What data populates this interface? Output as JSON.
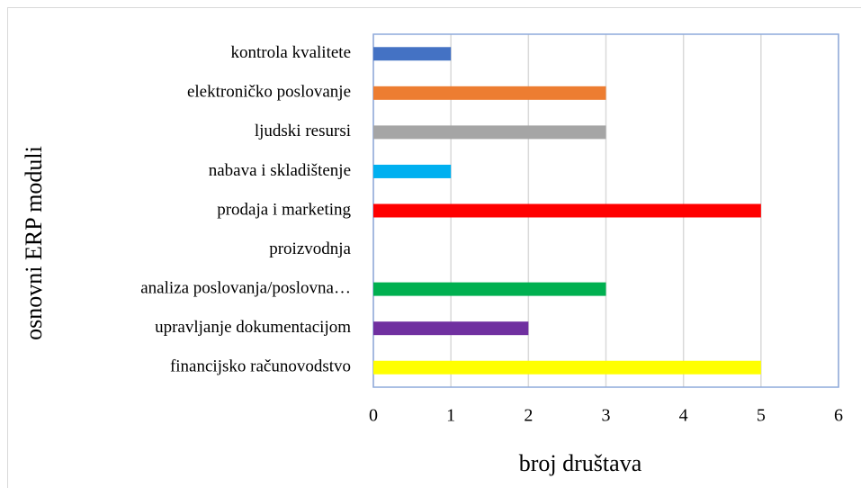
{
  "chart_data": {
    "type": "bar",
    "orientation": "horizontal",
    "x_label": "broj društava",
    "y_label": "osnovni ERP moduli",
    "categories": [
      "kontrola kvalitete",
      "elektroničko poslovanje",
      "ljudski resursi",
      "nabava i skladištenje",
      "prodaja i marketing",
      "proizvodnja",
      "analiza poslovanja/poslovna…",
      "upravljanje dokumentacijom",
      "financijsko računovodstvo"
    ],
    "values": [
      1,
      3,
      3,
      1,
      5,
      0,
      3,
      2,
      5
    ],
    "colors": [
      "#4472c4",
      "#ed7d31",
      "#a5a5a5",
      "#00b0f0",
      "#ff0000",
      "#7f7f7f",
      "#00b050",
      "#7030a0",
      "#ffff00"
    ],
    "xlim": [
      0,
      6
    ],
    "xticks": [
      0,
      1,
      2,
      3,
      4,
      5,
      6
    ],
    "grid": true
  }
}
